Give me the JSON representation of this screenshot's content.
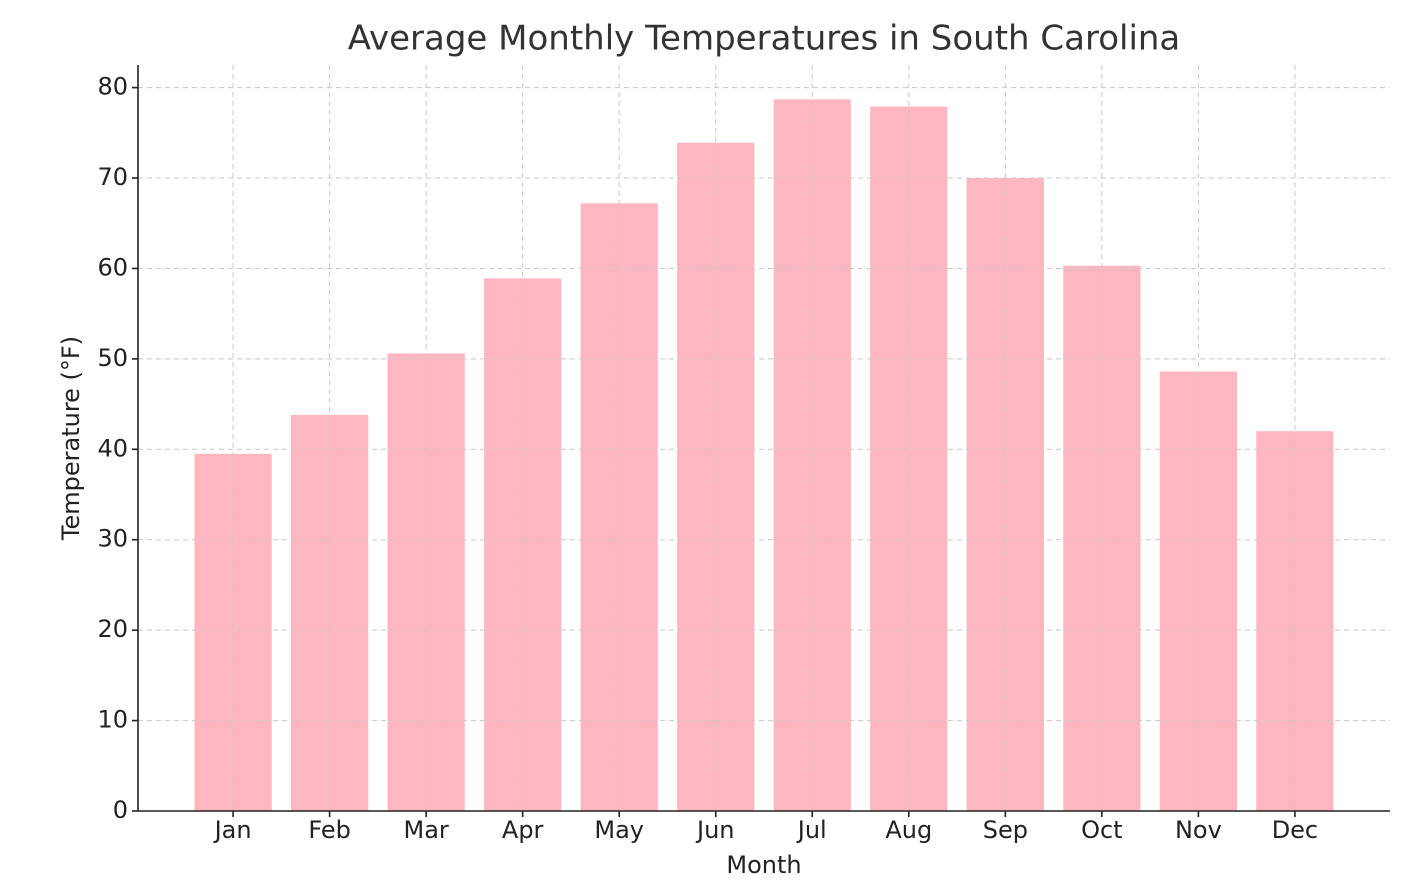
{
  "chart_data": {
    "type": "bar",
    "title": "Average Monthly Temperatures in South Carolina",
    "x_label": "Month",
    "y_label": "Temperature (°F)",
    "categories": [
      "Jan",
      "Feb",
      "Mar",
      "Apr",
      "May",
      "Jun",
      "Jul",
      "Aug",
      "Sep",
      "Oct",
      "Nov",
      "Dec"
    ],
    "values": [
      39.5,
      43.8,
      50.6,
      58.9,
      67.2,
      73.9,
      78.7,
      77.9,
      70.0,
      60.3,
      48.6,
      42.0
    ],
    "color": "#ffb6c1",
    "ylim": [
      0,
      82.5
    ],
    "yticks": [
      0,
      10,
      20,
      30,
      40,
      50,
      60,
      70,
      80
    ],
    "grid": true
  }
}
